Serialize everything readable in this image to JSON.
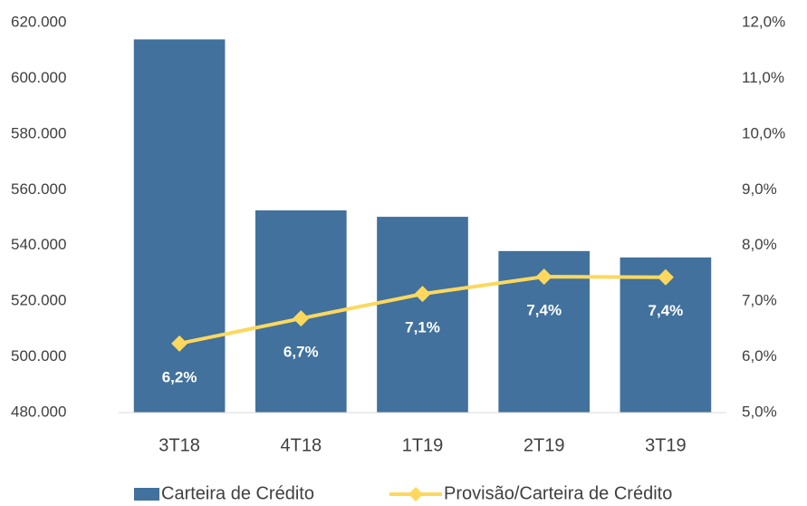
{
  "chart_data": {
    "type": "bar_line",
    "categories": [
      "3T18",
      "4T18",
      "1T19",
      "2T19",
      "3T19"
    ],
    "series": [
      {
        "name": "Carteira de Crédito",
        "type": "bar",
        "color": "#41719c",
        "axis": "y",
        "values": [
          614000,
          552600,
          550300,
          538000,
          535700
        ]
      },
      {
        "name": "Provisão/Carteira de Crédito",
        "type": "line",
        "color": "#fdd85d",
        "axis": "y2",
        "values": [
          6.24,
          6.69,
          7.13,
          7.44,
          7.43
        ],
        "value_labels": [
          "6,2%",
          "6,7%",
          "7,1%",
          "7,4%",
          "7,4%"
        ]
      }
    ],
    "ylim": [
      480000,
      620000
    ],
    "yticks": [
      {
        "value": 480000,
        "label": "480.000"
      },
      {
        "value": 500000,
        "label": "500.000"
      },
      {
        "value": 520000,
        "label": "520.000"
      },
      {
        "value": 540000,
        "label": "540.000"
      },
      {
        "value": 560000,
        "label": "560.000"
      },
      {
        "value": 580000,
        "label": "580.000"
      },
      {
        "value": 600000,
        "label": "600.000"
      },
      {
        "value": 620000,
        "label": "620.000"
      }
    ],
    "y2lim": [
      5,
      12
    ],
    "y2ticks": [
      {
        "value": 5,
        "label": "5,0%"
      },
      {
        "value": 6,
        "label": "6,0%"
      },
      {
        "value": 7,
        "label": "7,0%"
      },
      {
        "value": 8,
        "label": "8,0%"
      },
      {
        "value": 9,
        "label": "9,0%"
      },
      {
        "value": 10,
        "label": "10,0%"
      },
      {
        "value": 11,
        "label": "11,0%"
      },
      {
        "value": 12,
        "label": "12,0%"
      }
    ],
    "legend": "bottom"
  }
}
